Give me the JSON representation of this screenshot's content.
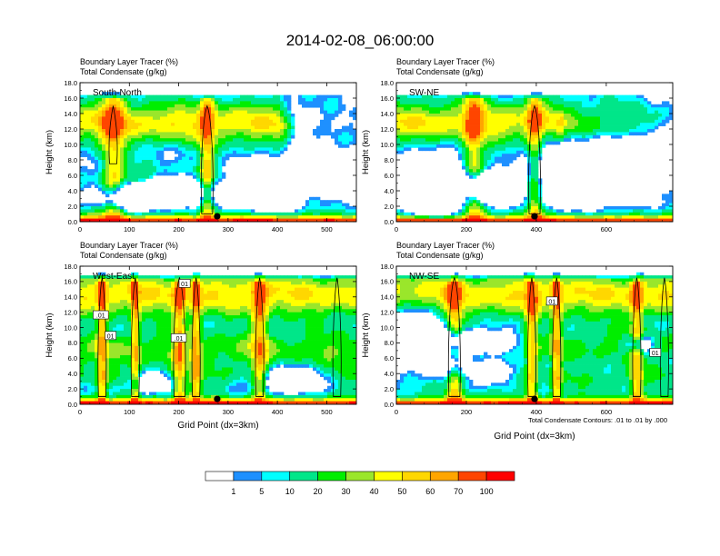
{
  "figure": {
    "title": "2014-02-08_06:00:00",
    "colorbar": {
      "colors": [
        "#ffffff",
        "#1e90ff",
        "#00ffff",
        "#00e689",
        "#00ee00",
        "#9ae62b",
        "#ffff00",
        "#ffd700",
        "#ffa500",
        "#ff4500",
        "#ff0000"
      ],
      "labels": [
        "1",
        "5",
        "10",
        "20",
        "30",
        "40",
        "50",
        "60",
        "70",
        "100"
      ]
    },
    "contour_note": "Total Condensate Contours: .01 to .01 by .000",
    "xlabel": "Grid Point (dx=3km)",
    "ylabel": "Height (km)"
  },
  "chart_data": [
    {
      "type": "heatmap",
      "panel_label": "South-North",
      "header_line1": "Boundary Layer Tracer   (%)",
      "header_line2": "Total Condensate   (g/kg)",
      "ylabel": "Height (km)",
      "xlabel": "",
      "xlim": [
        0,
        560
      ],
      "ylim": [
        0,
        18
      ],
      "xticks": [
        0,
        100,
        200,
        300,
        400,
        500
      ],
      "yticks": [
        "0.0",
        "2.0",
        "4.0",
        "6.0",
        "8.0",
        "10.0",
        "12.0",
        "14.0",
        "16.0",
        "18.0"
      ],
      "marker_x": 278,
      "contour_labels": []
    },
    {
      "type": "heatmap",
      "panel_label": "SW-NE",
      "header_line1": "Boundary Layer Tracer   (%)",
      "header_line2": "Total Condensate   (g/kg)",
      "ylabel": "Height (km)",
      "xlabel": "",
      "xlim": [
        0,
        790
      ],
      "ylim": [
        0,
        18
      ],
      "xticks": [
        0,
        200,
        400,
        600
      ],
      "yticks": [
        "0.0",
        "2.0",
        "4.0",
        "6.0",
        "8.0",
        "10.0",
        "12.0",
        "14.0",
        "16.0",
        "18.0"
      ],
      "marker_x": 395,
      "contour_labels": []
    },
    {
      "type": "heatmap",
      "panel_label": "West-East",
      "header_line1": "Boundary Layer Tracer   (%)",
      "header_line2": "Total Condensate   (g/kg)",
      "ylabel": "Height (km)",
      "xlabel": "Grid Point (dx=3km)",
      "xlim": [
        0,
        560
      ],
      "ylim": [
        0,
        18
      ],
      "xticks": [
        0,
        100,
        200,
        300,
        400,
        500
      ],
      "yticks": [
        "0.0",
        "2.0",
        "4.0",
        "6.0",
        "8.0",
        "10.0",
        "12.0",
        "14.0",
        "16.0",
        "18.0"
      ],
      "marker_x": 278,
      "contour_labels": [
        {
          "text": "01",
          "x": 212,
          "y": 15.7
        },
        {
          "text": ".01",
          "x": 42,
          "y": 11.6
        },
        {
          "text": "01",
          "x": 62,
          "y": 8.9
        },
        {
          "text": ".01",
          "x": 200,
          "y": 8.6
        }
      ]
    },
    {
      "type": "heatmap",
      "panel_label": "NW-SE",
      "header_line1": "Boundary Layer Tracer   (%)",
      "header_line2": "Total Condensate   (g/kg)",
      "ylabel": "Height (km)",
      "xlabel": "Grid Point (dx=3km)",
      "xlim": [
        0,
        790
      ],
      "ylim": [
        0,
        18
      ],
      "xticks": [
        0,
        200,
        400,
        600
      ],
      "yticks": [
        "0.0",
        "2.0",
        "4.0",
        "6.0",
        "8.0",
        "10.0",
        "12.0",
        "14.0",
        "16.0",
        "18.0"
      ],
      "marker_x": 395,
      "contour_labels": [
        {
          "text": "01",
          "x": 445,
          "y": 13.4
        },
        {
          "text": "01",
          "x": 740,
          "y": 6.7
        }
      ]
    }
  ]
}
